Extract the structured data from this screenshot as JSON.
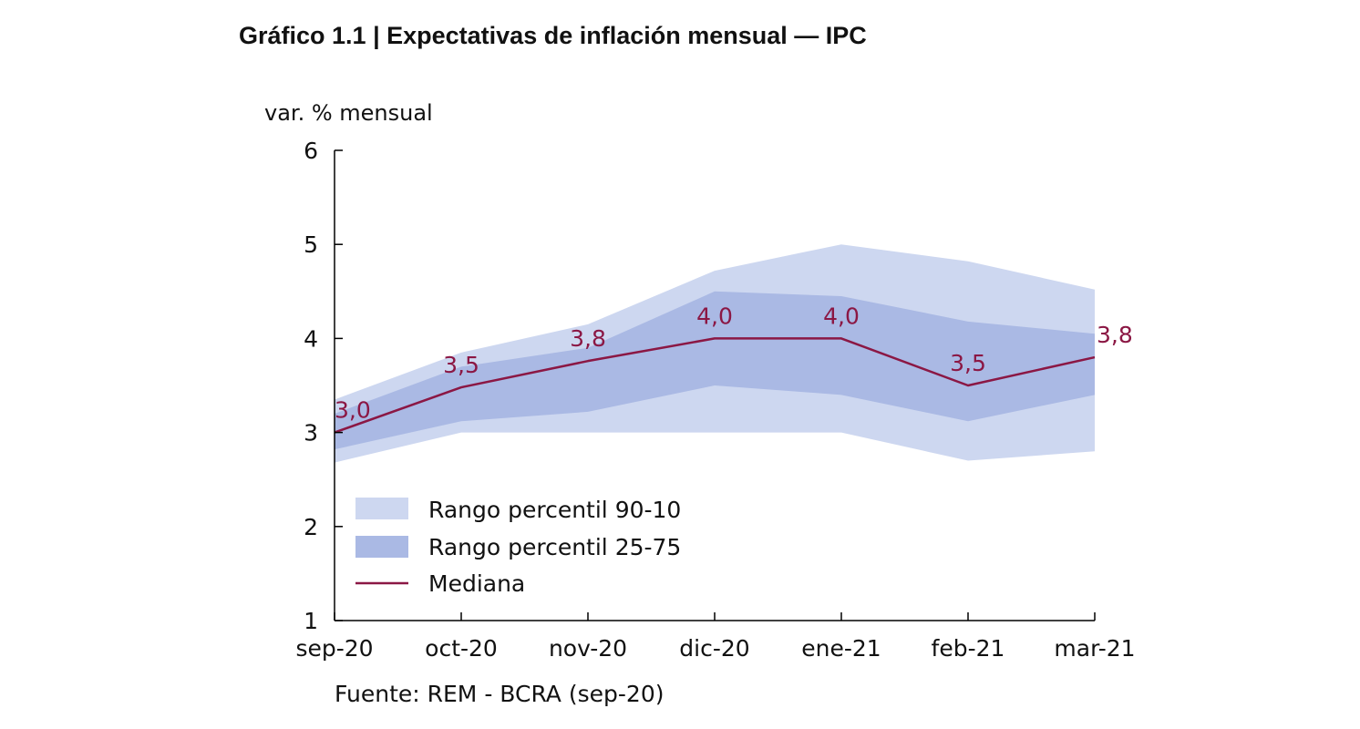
{
  "chart_data": {
    "type": "area",
    "title": "Gráfico 1.1 | Expectativas de inflación mensual — IPC",
    "ylabel": "var. % mensual",
    "xlabel": "",
    "ylim": [
      1,
      6
    ],
    "yticks": [
      "1",
      "2",
      "3",
      "4",
      "5",
      "6"
    ],
    "categories": [
      "sep-20",
      "oct-20",
      "nov-20",
      "dic-20",
      "ene-21",
      "feb-21",
      "mar-21"
    ],
    "series": [
      {
        "name": "Rango percentil 90-10",
        "kind": "band",
        "upper": [
          3.35,
          3.85,
          4.15,
          4.72,
          5.0,
          4.82,
          4.52
        ],
        "lower": [
          2.68,
          3.0,
          3.0,
          3.0,
          3.0,
          2.7,
          2.8
        ]
      },
      {
        "name": "Rango percentil 25-75",
        "kind": "band",
        "upper": [
          3.2,
          3.7,
          3.9,
          4.5,
          4.45,
          4.18,
          4.05
        ],
        "lower": [
          2.82,
          3.12,
          3.22,
          3.5,
          3.4,
          3.12,
          3.4
        ]
      },
      {
        "name": "Mediana",
        "kind": "line",
        "values": [
          3.0,
          3.48,
          3.76,
          4.0,
          4.0,
          3.5,
          3.8
        ],
        "labels": [
          "3,0",
          "3,5",
          "3,8",
          "4,0",
          "4,0",
          "3,5",
          "3,8"
        ]
      }
    ],
    "colors": {
      "band_90_10": "#cdd7f0",
      "band_25_75": "#aab9e4",
      "median": "#8b1744",
      "axis": "#000000"
    },
    "legend_placement": "bottom-left",
    "grid": false,
    "source": "Fuente: REM - BCRA (sep-20)"
  }
}
